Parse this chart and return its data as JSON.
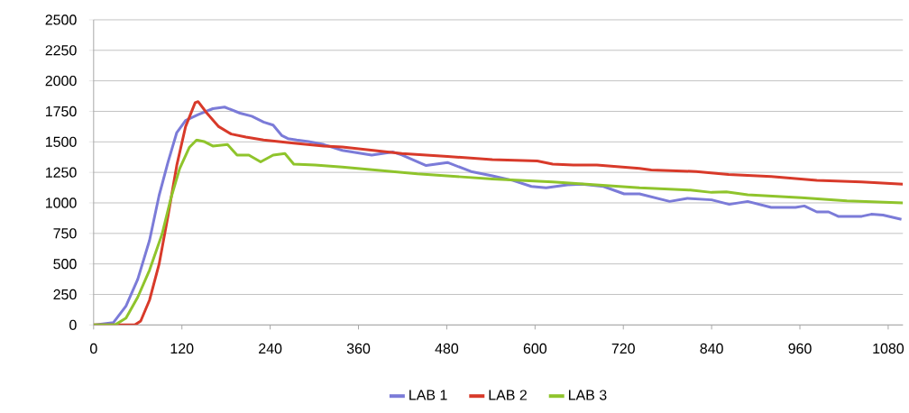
{
  "chart_data": {
    "type": "line",
    "xlim": [
      0,
      1100
    ],
    "ylim": [
      0,
      2500
    ],
    "xticks": [
      0,
      120,
      240,
      360,
      480,
      600,
      720,
      840,
      960,
      1080
    ],
    "yticks": [
      0,
      250,
      500,
      750,
      1000,
      1250,
      1500,
      1750,
      2000,
      2250,
      2500
    ],
    "grid": "y",
    "legend": "bottom",
    "marker": "none",
    "line_style": "solid",
    "series": [
      {
        "name": "LAB 1",
        "color": "#7b7bd8",
        "x": [
          0,
          27,
          44,
          60,
          76,
          89,
          101,
          113,
          125,
          142,
          162,
          178,
          199,
          215,
          231,
          244,
          256,
          264,
          276,
          292,
          313,
          338,
          378,
          407,
          419,
          452,
          481,
          513,
          542,
          570,
          595,
          615,
          644,
          664,
          693,
          721,
          742,
          783,
          807,
          840,
          864,
          889,
          921,
          954,
          966,
          983,
          999,
          1012,
          1044,
          1057,
          1073,
          1098
        ],
        "values": [
          0,
          20,
          155,
          375,
          693,
          1061,
          1331,
          1576,
          1675,
          1723,
          1772,
          1785,
          1735,
          1710,
          1662,
          1637,
          1551,
          1527,
          1515,
          1503,
          1478,
          1430,
          1392,
          1417,
          1392,
          1306,
          1331,
          1257,
          1221,
          1184,
          1135,
          1123,
          1147,
          1154,
          1135,
          1074,
          1074,
          1012,
          1037,
          1025,
          988,
          1012,
          963,
          963,
          975,
          926,
          926,
          890,
          890,
          907,
          900,
          865
        ]
      },
      {
        "name": "LAB 2",
        "color": "#d83a2a",
        "x": [
          0,
          56,
          64,
          76,
          89,
          101,
          113,
          125,
          138,
          142,
          154,
          170,
          187,
          207,
          231,
          272,
          313,
          338,
          419,
          481,
          542,
          603,
          624,
          652,
          684,
          742,
          758,
          819,
          863,
          921,
          983,
          1044,
          1100
        ],
        "values": [
          0,
          0,
          32,
          204,
          498,
          890,
          1307,
          1625,
          1821,
          1830,
          1735,
          1625,
          1564,
          1539,
          1515,
          1490,
          1466,
          1458,
          1404,
          1380,
          1355,
          1343,
          1318,
          1311,
          1311,
          1282,
          1270,
          1257,
          1233,
          1216,
          1184,
          1172,
          1154
        ]
      },
      {
        "name": "LAB 3",
        "color": "#8fc42c",
        "x": [
          0,
          29,
          44,
          60,
          76,
          93,
          105,
          117,
          130,
          140,
          150,
          162,
          182,
          195,
          211,
          227,
          244,
          260,
          272,
          301,
          338,
          440,
          542,
          624,
          742,
          811,
          840,
          860,
          889,
          962,
          1024,
          1100
        ],
        "values": [
          0,
          0,
          57,
          228,
          449,
          743,
          1037,
          1282,
          1454,
          1515,
          1503,
          1466,
          1478,
          1392,
          1392,
          1336,
          1392,
          1404,
          1318,
          1311,
          1294,
          1238,
          1196,
          1172,
          1123,
          1105,
          1086,
          1090,
          1066,
          1042,
          1017,
          1000
        ]
      }
    ]
  }
}
